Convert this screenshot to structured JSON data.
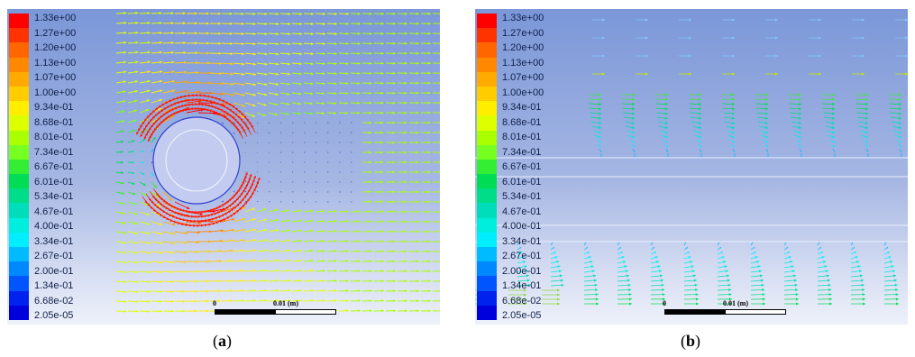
{
  "panels": [
    {
      "id": "a",
      "legend": [
        "1.33e+00",
        "1.27e+00",
        "1.20e+00",
        "1.13e+00",
        "1.07e+00",
        "1.00e+00",
        "9.34e-01",
        "8.68e-01",
        "8.01e-01",
        "7.34e-01",
        "6.67e-01",
        "6.01e-01",
        "5.34e-01",
        "4.67e-01",
        "4.00e-01",
        "3.34e-01",
        "2.67e-01",
        "2.00e-01",
        "1.34e-01",
        "6.68e-02",
        "2.05e-05"
      ],
      "scale": {
        "zero": "0",
        "label": "0.01 (m)"
      },
      "caption": {
        "open": "(",
        "letter": "a",
        "close": ")"
      }
    },
    {
      "id": "b",
      "legend": [
        "1.33e+00",
        "1.27e+00",
        "1.20e+00",
        "1.13e+00",
        "1.07e+00",
        "1.00e+00",
        "9.34e-01",
        "8.68e-01",
        "8.01e-01",
        "7.34e-01",
        "6.67e-01",
        "6.01e-01",
        "5.34e-01",
        "4.67e-01",
        "4.00e-01",
        "3.34e-01",
        "2.67e-01",
        "2.00e-01",
        "1.34e-01",
        "6.68e-02",
        "2.05e-05"
      ],
      "scale": {
        "zero": "0",
        "label": "0.01 (m)"
      },
      "caption": {
        "open": "(",
        "letter": "b",
        "close": ")"
      }
    }
  ],
  "colormap": [
    "#ff0000",
    "#ff3300",
    "#ff6600",
    "#ff8800",
    "#ffaa00",
    "#ffcc00",
    "#ffee00",
    "#ddff00",
    "#aaff00",
    "#77ff22",
    "#33ee33",
    "#00dd55",
    "#00dd88",
    "#00ddbb",
    "#00eedd",
    "#00eeff",
    "#00bbff",
    "#0088ff",
    "#0055ff",
    "#0022ee",
    "#0000dd"
  ]
}
